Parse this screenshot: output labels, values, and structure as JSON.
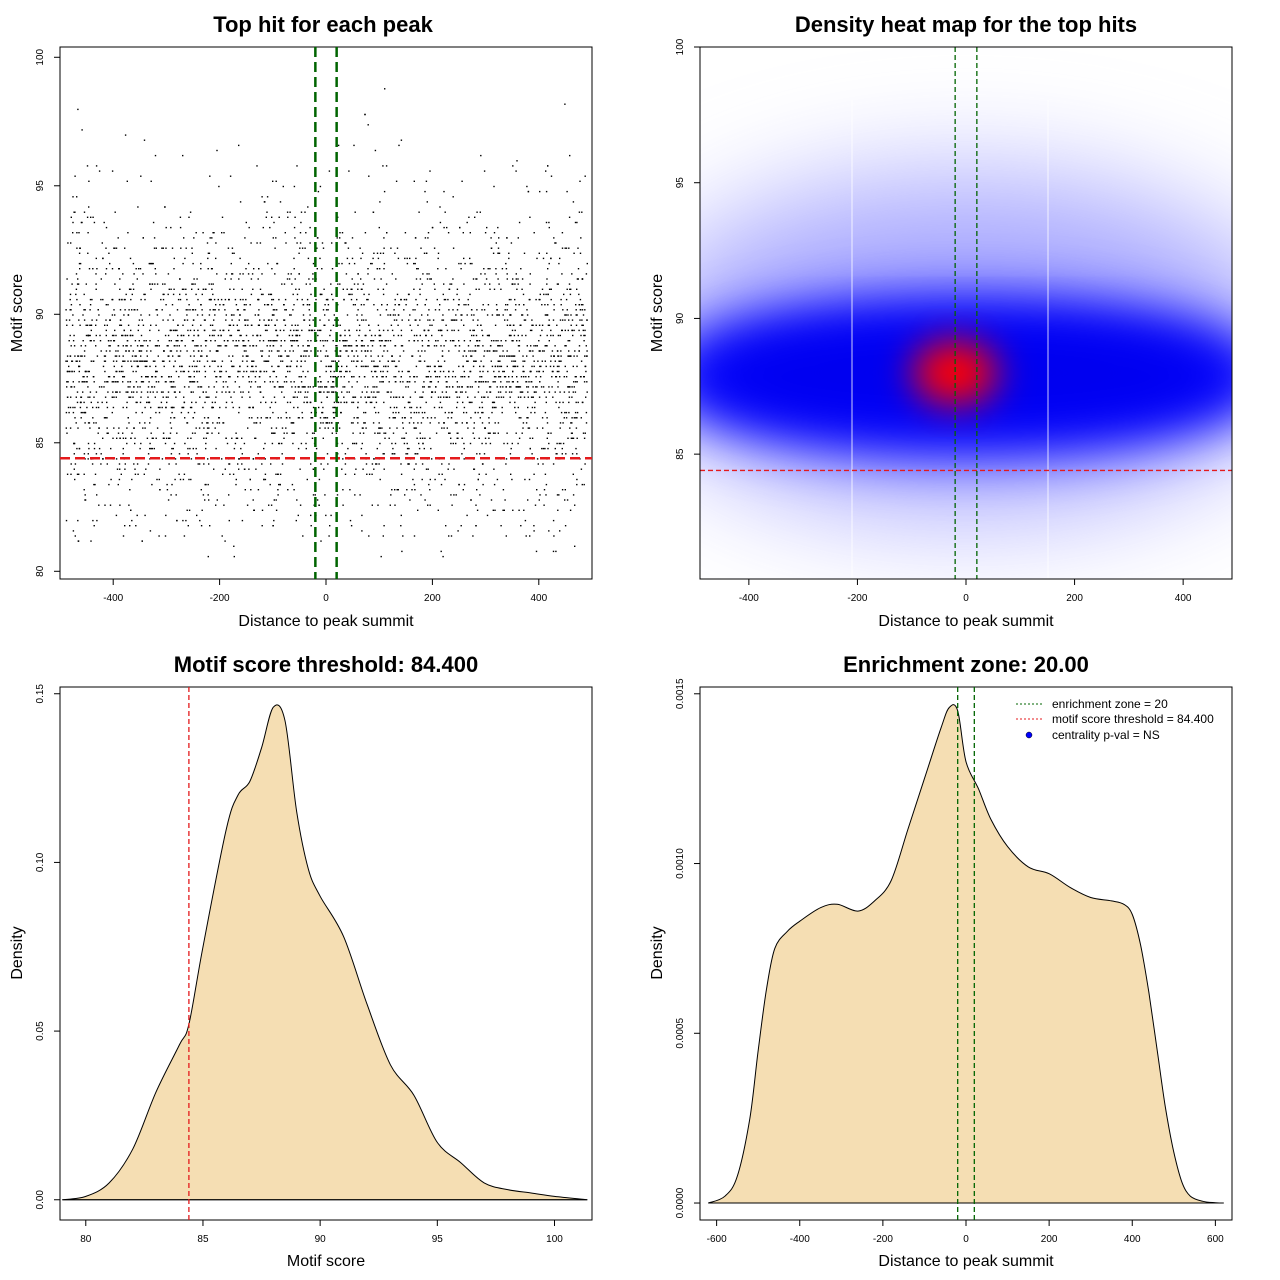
{
  "colors": {
    "threshold": "#e41a1c",
    "zone": "#006400",
    "density_fill": "#f5deb3",
    "points": "#000000",
    "heat_low": "#ffffff",
    "heat_mid": "#0000ff",
    "heat_high": "#ff0000",
    "legend_dot": "#0000ff"
  },
  "chart_data": [
    {
      "type": "scatter",
      "title": "Top hit for each peak",
      "xlabel": "Distance to peak summit",
      "ylabel": "Motif score",
      "xlim": [
        -500,
        500
      ],
      "ylim": [
        79.7,
        100.4
      ],
      "xticks": [
        -400,
        -200,
        0,
        200,
        400
      ],
      "xtick_labels": [
        "-400",
        "-200",
        "0",
        "200",
        "400"
      ],
      "yticks": [
        80,
        85,
        90,
        95,
        100
      ],
      "ytick_labels": [
        "80",
        "85",
        "90",
        "95",
        "100"
      ],
      "hlines": [
        84.4
      ],
      "vlines": [
        -20,
        20
      ],
      "point_count": 4000,
      "distribution": {
        "x_range": [
          -490,
          490
        ],
        "y_center": 88,
        "y_sd": 3.1,
        "y_min": 80.5,
        "y_max": 100
      }
    },
    {
      "type": "heatmap",
      "title": "Density heat map for the top hits",
      "xlabel": "Distance to peak summit",
      "ylabel": "Motif score",
      "xlim": [
        -490,
        490
      ],
      "ylim": [
        80.4,
        100
      ],
      "xticks": [
        -400,
        -200,
        0,
        200,
        400
      ],
      "xtick_labels": [
        "-400",
        "-200",
        "0",
        "200",
        "400"
      ],
      "yticks": [
        85,
        90,
        95,
        100
      ],
      "ytick_labels": [
        "85",
        "90",
        "95",
        "100"
      ],
      "hlines": [
        84.4
      ],
      "vlines": [
        -20,
        20
      ],
      "peak": {
        "x": -20,
        "y": 88
      }
    },
    {
      "type": "area",
      "title": "Motif score threshold: 84.400",
      "xlabel": "Motif score",
      "ylabel": "Density",
      "xlim": [
        78.9,
        101.6
      ],
      "ylim": [
        -0.006,
        0.152
      ],
      "xticks": [
        80,
        85,
        90,
        95,
        100
      ],
      "xtick_labels": [
        "80",
        "85",
        "90",
        "95",
        "100"
      ],
      "yticks": [
        0,
        0.05,
        0.1,
        0.15
      ],
      "ytick_labels": [
        "0.00",
        "0.05",
        "0.10",
        "0.15"
      ],
      "vlines": [
        84.4
      ],
      "x": [
        79.0,
        80.0,
        81.0,
        82.0,
        83.0,
        84.0,
        84.4,
        85.0,
        86.0,
        86.5,
        87.0,
        87.5,
        88.0,
        88.5,
        89.0,
        89.5,
        90.0,
        91.0,
        92.0,
        93.0,
        94.0,
        95.0,
        96.0,
        97.0,
        98.0,
        99.0,
        100.0,
        101.4
      ],
      "y": [
        0.0,
        0.001,
        0.005,
        0.015,
        0.032,
        0.046,
        0.052,
        0.075,
        0.11,
        0.12,
        0.124,
        0.134,
        0.146,
        0.142,
        0.115,
        0.098,
        0.09,
        0.078,
        0.058,
        0.04,
        0.031,
        0.017,
        0.011,
        0.005,
        0.003,
        0.002,
        0.001,
        0.0
      ]
    },
    {
      "type": "area",
      "title": "Enrichment zone: 20.00",
      "xlabel": "Distance to peak summit",
      "ylabel": "Density",
      "xlim": [
        -640,
        640
      ],
      "ylim": [
        -5e-05,
        0.00152
      ],
      "xticks": [
        -600,
        -400,
        -200,
        0,
        200,
        400,
        600
      ],
      "xtick_labels": [
        "-600",
        "-400",
        "-200",
        "0",
        "200",
        "400",
        "600"
      ],
      "yticks": [
        0,
        0.0005,
        0.001,
        0.0015
      ],
      "ytick_labels": [
        "0.0000",
        "0.0005",
        "0.0010",
        "0.0015"
      ],
      "vlines": [
        -20,
        20
      ],
      "x": [
        -620,
        -580,
        -550,
        -520,
        -500,
        -480,
        -460,
        -430,
        -400,
        -350,
        -310,
        -260,
        -220,
        -180,
        -140,
        -100,
        -60,
        -40,
        -20,
        0,
        30,
        60,
        100,
        150,
        200,
        250,
        300,
        350,
        380,
        400,
        420,
        440,
        460,
        480,
        500,
        520,
        540,
        570,
        600,
        620
      ],
      "y": [
        0.0,
        2e-05,
        8e-05,
        0.00025,
        0.00045,
        0.00063,
        0.00075,
        0.0008,
        0.00083,
        0.00087,
        0.00088,
        0.00086,
        0.00089,
        0.00095,
        0.0011,
        0.00125,
        0.0014,
        0.00146,
        0.00145,
        0.0013,
        0.00122,
        0.00113,
        0.00105,
        0.00099,
        0.00097,
        0.00093,
        0.0009,
        0.00089,
        0.00088,
        0.00085,
        0.00076,
        0.00062,
        0.00045,
        0.00028,
        0.00015,
        6e-05,
        2e-05,
        5e-06,
        1e-06,
        0.0
      ],
      "legend": {
        "position": "top-right",
        "entries": [
          {
            "label": "enrichment zone = 20",
            "style": "dotted",
            "color": "#006400"
          },
          {
            "label": "motif score threshold = 84.400",
            "style": "dotted",
            "color": "#e41a1c"
          },
          {
            "label": "centrality p-val = NS",
            "style": "point",
            "color": "#0000ff"
          }
        ]
      }
    }
  ]
}
